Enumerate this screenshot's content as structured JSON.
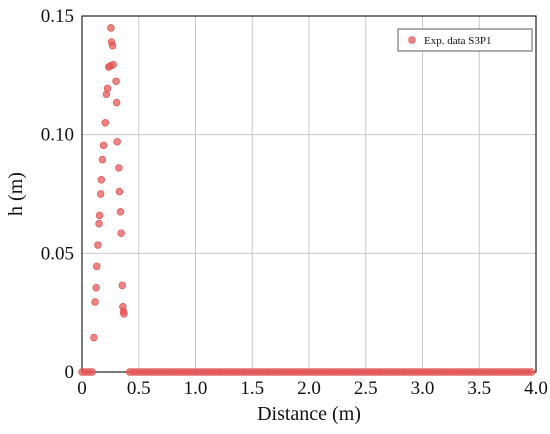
{
  "chart_data": {
    "type": "scatter",
    "title": "",
    "xlabel": "Distance (m)",
    "ylabel": "h (m)",
    "xlim": [
      0,
      4.0
    ],
    "ylim": [
      0,
      0.15
    ],
    "x_ticks": [
      0,
      0.5,
      1.0,
      1.5,
      2.0,
      2.5,
      3.0,
      3.5,
      4.0
    ],
    "x_tick_labels": [
      "0",
      "0.5",
      "1.0",
      "1.5",
      "2.0",
      "2.5",
      "3.0",
      "3.5",
      "4.0"
    ],
    "y_ticks": [
      0,
      0.05,
      0.1,
      0.15
    ],
    "y_tick_labels": [
      "0",
      "0.05",
      "0.10",
      "0.15"
    ],
    "grid": true,
    "legend_position": "top-right",
    "marker_color": "#e85a5a",
    "marker_edge_color": "#d94848",
    "series": [
      {
        "name": "Exp. data S3P1",
        "points": [
          [
            0.105,
            0.0145
          ],
          [
            0.115,
            0.0295
          ],
          [
            0.125,
            0.0355
          ],
          [
            0.13,
            0.0445
          ],
          [
            0.14,
            0.0535
          ],
          [
            0.15,
            0.0625
          ],
          [
            0.155,
            0.066
          ],
          [
            0.165,
            0.075
          ],
          [
            0.17,
            0.081
          ],
          [
            0.18,
            0.0895
          ],
          [
            0.19,
            0.0955
          ],
          [
            0.205,
            0.105
          ],
          [
            0.215,
            0.117
          ],
          [
            0.225,
            0.1195
          ],
          [
            0.235,
            0.1285
          ],
          [
            0.25,
            0.129
          ],
          [
            0.26,
            0.139
          ],
          [
            0.255,
            0.145
          ],
          [
            0.27,
            0.1375
          ],
          [
            0.275,
            0.1295
          ],
          [
            0.3,
            0.1225
          ],
          [
            0.305,
            0.1135
          ],
          [
            0.31,
            0.097
          ],
          [
            0.325,
            0.086
          ],
          [
            0.33,
            0.076
          ],
          [
            0.34,
            0.0675
          ],
          [
            0.345,
            0.0585
          ],
          [
            0.355,
            0.0365
          ],
          [
            0.36,
            0.0275
          ],
          [
            0.365,
            0.0255
          ],
          [
            0.37,
            0.0245
          ]
        ],
        "baseline": {
          "y": 0,
          "x_left": [
            0,
            0.1
          ],
          "x_right": [
            0.42,
            3.98
          ],
          "spacing": 0.03
        }
      }
    ]
  }
}
